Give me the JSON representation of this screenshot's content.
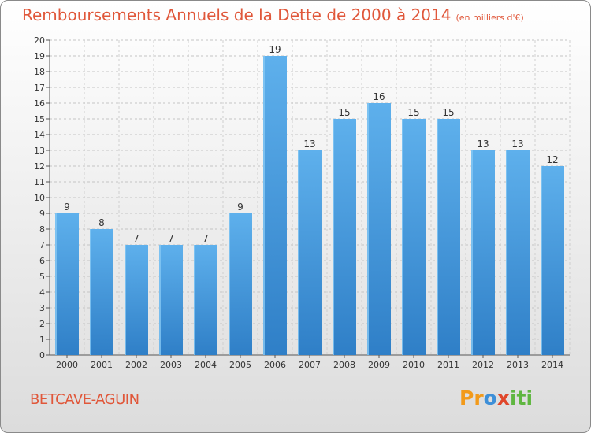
{
  "header": {
    "title": "Remboursements Annuels de la Dette de 2000 à 2014",
    "unit": "(en milliers d'€)"
  },
  "footer": {
    "commune": "BETCAVE-AGUIN",
    "logo": [
      "Pr",
      "o",
      "x",
      "iti"
    ]
  },
  "colors": {
    "bar": "#3d8fd8",
    "bar_light": "#5eb0ec",
    "title": "#e0573a"
  },
  "chart_data": {
    "type": "bar",
    "title": "Remboursements Annuels de la Dette de 2000 à 2014",
    "ylabel": "en milliers d'€",
    "xlabel": "",
    "categories": [
      "2000",
      "2001",
      "2002",
      "2003",
      "2004",
      "2005",
      "2006",
      "2007",
      "2008",
      "2009",
      "2010",
      "2011",
      "2012",
      "2013",
      "2014"
    ],
    "values": [
      9,
      8,
      7,
      7,
      7,
      9,
      19,
      13,
      15,
      16,
      15,
      15,
      13,
      13,
      12
    ],
    "ylim": [
      0,
      20
    ],
    "yticks": [
      0,
      1,
      2,
      3,
      4,
      5,
      6,
      7,
      8,
      9,
      10,
      11,
      12,
      13,
      14,
      15,
      16,
      17,
      18,
      19,
      20
    ],
    "grid": true
  }
}
